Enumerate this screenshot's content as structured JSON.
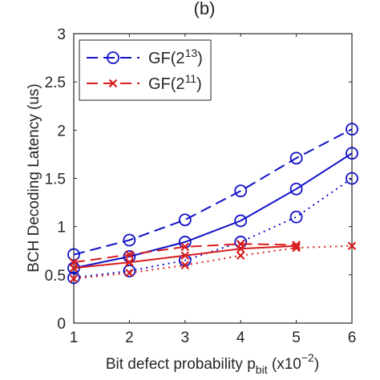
{
  "chart_data": {
    "type": "line",
    "panel_label": "(b)",
    "xlabel": {
      "text": "Bit defect probability p",
      "sub": "bit",
      "after": " (x10",
      "sup": "−2",
      "close": ")"
    },
    "ylabel": "BCH Decoding Latency (us)",
    "x": [
      1,
      2,
      3,
      4,
      5,
      6
    ],
    "xlim": [
      1,
      6
    ],
    "ylim": [
      0,
      3
    ],
    "xticks": [
      "1",
      "2",
      "3",
      "4",
      "5",
      "6"
    ],
    "yticks": [
      "0",
      "0.5",
      "1",
      "1.5",
      "2",
      "2.5",
      "3"
    ],
    "legend_position": "top-left",
    "legend": [
      {
        "label": "GF(2",
        "sup": "13",
        "close": ")",
        "color": "#1010c8",
        "marker": "circle"
      },
      {
        "label": "GF(2",
        "sup": "11",
        "close": ")",
        "color": "#d81e1e",
        "marker": "x"
      }
    ],
    "series": [
      {
        "name": "GF(2^13)",
        "style": "dashed",
        "color": "#1010c8",
        "marker": "circle",
        "values": [
          0.71,
          0.86,
          1.07,
          1.37,
          1.71,
          2.01
        ]
      },
      {
        "style": "solid",
        "color": "#1010c8",
        "marker": "circle",
        "values": [
          0.57,
          0.69,
          0.84,
          1.06,
          1.39,
          1.76
        ]
      },
      {
        "style": "dotted",
        "color": "#1010c8",
        "marker": "circle",
        "values": [
          0.47,
          0.54,
          0.65,
          0.84,
          1.1,
          1.5
        ]
      },
      {
        "name": "GF(2^11)",
        "style": "dashed",
        "color": "#d81e1e",
        "marker": "x",
        "values": [
          0.63,
          0.71,
          0.79,
          0.82,
          0.81,
          null
        ]
      },
      {
        "style": "solid",
        "color": "#d81e1e",
        "marker": "x",
        "values": [
          0.57,
          0.63,
          0.7,
          0.77,
          0.8,
          null
        ]
      },
      {
        "style": "dotted",
        "color": "#d81e1e",
        "marker": "x",
        "values": [
          0.46,
          0.52,
          0.6,
          0.7,
          0.78,
          0.8
        ]
      }
    ]
  }
}
